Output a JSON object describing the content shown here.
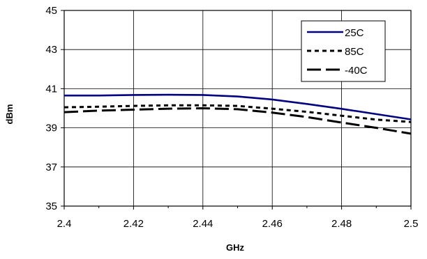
{
  "chart_data": {
    "type": "line",
    "title": "",
    "xlabel": "GHz",
    "ylabel": "dBm",
    "xlim": [
      2.4,
      2.5
    ],
    "ylim": [
      35,
      45
    ],
    "x_ticks": [
      "2.4",
      "2.42",
      "2.44",
      "2.46",
      "2.48",
      "2.5"
    ],
    "y_ticks": [
      "35",
      "37",
      "39",
      "41",
      "43",
      "45"
    ],
    "grid": true,
    "legend_position": "top-right",
    "x": [
      2.4,
      2.41,
      2.42,
      2.43,
      2.44,
      2.45,
      2.46,
      2.47,
      2.48,
      2.49,
      2.5
    ],
    "series": [
      {
        "name": "25C",
        "color": "#000080",
        "dash": "solid",
        "values": [
          40.65,
          40.65,
          40.68,
          40.69,
          40.68,
          40.6,
          40.45,
          40.22,
          39.97,
          39.7,
          39.43
        ]
      },
      {
        "name": "85C",
        "color": "#000000",
        "dash": "dotted",
        "values": [
          40.05,
          40.08,
          40.12,
          40.15,
          40.15,
          40.12,
          39.98,
          39.82,
          39.62,
          39.42,
          39.3
        ]
      },
      {
        "name": "-40C",
        "color": "#000000",
        "dash": "long-dash",
        "values": [
          39.8,
          39.88,
          39.93,
          39.98,
          40.0,
          39.95,
          39.78,
          39.55,
          39.27,
          39.0,
          38.7
        ]
      }
    ]
  }
}
